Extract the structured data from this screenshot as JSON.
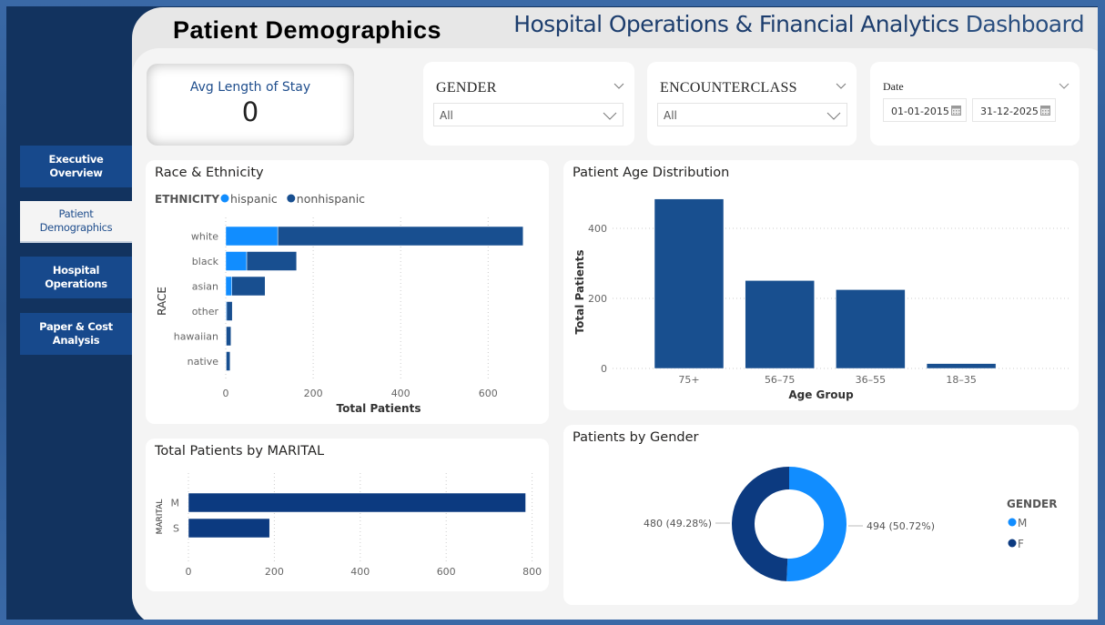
{
  "page": {
    "title": "Patient Demographics",
    "dashboard_title_bold": "Hospital Operations & Financial Analytics",
    "dashboard_title_light": "Dashboard"
  },
  "nav": {
    "items": [
      {
        "label": "Executive Overview",
        "active": false
      },
      {
        "label": "Patient Demographics",
        "active": true
      },
      {
        "label": "Hospital Operations",
        "active": false
      },
      {
        "label": "Paper & Cost Analysis",
        "active": false
      }
    ]
  },
  "kpi": {
    "label": "Avg Length of Stay",
    "value": "0"
  },
  "slicers": {
    "gender": {
      "label": "GENDER",
      "value": "All"
    },
    "encounterclass": {
      "label": "ENCOUNTERCLASS",
      "value": "All"
    },
    "date": {
      "label": "Date",
      "start": "01-01-2015",
      "end": "31-12-2025"
    }
  },
  "colors": {
    "hispanic": "#118dff",
    "nonhispanic": "#184f90",
    "age_bar": "#184f8f",
    "marital_bar": "#0c3a80",
    "male": "#118dff",
    "female": "#0c3a80",
    "nav_bg": "#12335f"
  },
  "chart_data": [
    {
      "id": "race",
      "type": "bar",
      "orientation": "horizontal",
      "stacked": true,
      "title": "Race & Ethnicity",
      "legend_title": "ETHNICITY",
      "legend_position": "top-left",
      "categories": [
        "white",
        "black",
        "asian",
        "other",
        "hawaiian",
        "native"
      ],
      "series": [
        {
          "name": "hispanic",
          "values": [
            119,
            48,
            14,
            2,
            1,
            1
          ]
        },
        {
          "name": "nonhispanic",
          "values": [
            561,
            114,
            76,
            13,
            11,
            9
          ]
        }
      ],
      "xlabel": "Total Patients",
      "ylabel": "RACE",
      "xlim": [
        0,
        680
      ],
      "xticks": [
        0,
        200,
        400,
        600
      ],
      "grid": true
    },
    {
      "id": "age",
      "type": "bar",
      "orientation": "vertical",
      "title": "Patient Age Distribution",
      "categories": [
        "75+",
        "56–75",
        "36–55",
        "18–35"
      ],
      "values": [
        484,
        251,
        225,
        14
      ],
      "xlabel": "Age Group",
      "ylabel": "Total Patients",
      "ylim": [
        0,
        500
      ],
      "yticks": [
        0,
        200,
        400
      ],
      "grid": true
    },
    {
      "id": "marital",
      "type": "bar",
      "orientation": "horizontal",
      "title": "Total Patients by MARITAL",
      "categories": [
        "M",
        "S"
      ],
      "values": [
        785,
        189
      ],
      "xlabel": "",
      "ylabel": "MARITAL",
      "xlim": [
        0,
        800
      ],
      "xticks": [
        0,
        200,
        400,
        600,
        800
      ],
      "grid": true
    },
    {
      "id": "gender",
      "type": "pie",
      "donut": true,
      "title": "Patients by Gender",
      "legend_title": "GENDER",
      "legend_position": "right",
      "slices": [
        {
          "label": "M",
          "value": 494,
          "data_label": "494 (50.72%)"
        },
        {
          "label": "F",
          "value": 480,
          "data_label": "480 (49.28%)"
        }
      ]
    }
  ]
}
